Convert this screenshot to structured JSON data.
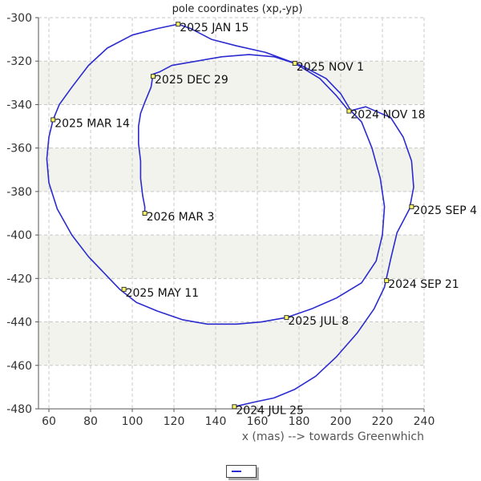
{
  "chart_data": {
    "type": "line",
    "title": "pole coordinates (xp,-yp)",
    "xlabel": "x (mas) --> towards Greenwhich",
    "ylabel": "",
    "xlim": [
      55,
      240
    ],
    "ylim": [
      -480,
      -300
    ],
    "x_ticks": [
      60,
      80,
      100,
      120,
      140,
      160,
      180,
      200,
      220,
      240
    ],
    "y_ticks": [
      -300,
      -320,
      -340,
      -360,
      -380,
      -400,
      -420,
      -440,
      -460,
      -480
    ],
    "grid": true,
    "series": [
      {
        "name": "",
        "color": "#2b2bd0",
        "points": [
          [
            149,
            -479
          ],
          [
            158,
            -477
          ],
          [
            168,
            -475
          ],
          [
            178,
            -471
          ],
          [
            188,
            -465
          ],
          [
            198,
            -456
          ],
          [
            208,
            -445
          ],
          [
            216,
            -434
          ],
          [
            221,
            -424
          ],
          [
            224,
            -411
          ],
          [
            227,
            -399
          ],
          [
            233,
            -388
          ],
          [
            235,
            -378
          ],
          [
            234,
            -366
          ],
          [
            230,
            -355
          ],
          [
            224,
            -346
          ],
          [
            212,
            -341
          ],
          [
            204,
            -343
          ],
          [
            198,
            -336
          ],
          [
            190,
            -328
          ],
          [
            178,
            -321
          ],
          [
            164,
            -316
          ],
          [
            150,
            -313
          ],
          [
            138,
            -310
          ],
          [
            128,
            -305
          ],
          [
            122,
            -303
          ],
          [
            112,
            -305
          ],
          [
            100,
            -308
          ],
          [
            88,
            -314
          ],
          [
            79,
            -322
          ],
          [
            71,
            -332
          ],
          [
            65,
            -340
          ],
          [
            62,
            -347
          ],
          [
            60,
            -355
          ],
          [
            59,
            -365
          ],
          [
            60,
            -376
          ],
          [
            64,
            -388
          ],
          [
            71,
            -400
          ],
          [
            79,
            -410
          ],
          [
            87,
            -418
          ],
          [
            94,
            -425
          ],
          [
            102,
            -431
          ],
          [
            112,
            -435
          ],
          [
            124,
            -439
          ],
          [
            136,
            -441
          ],
          [
            150,
            -441
          ],
          [
            162,
            -440
          ],
          [
            174,
            -438
          ],
          [
            186,
            -434
          ],
          [
            198,
            -429
          ],
          [
            210,
            -422
          ],
          [
            217,
            -412
          ],
          [
            220,
            -400
          ],
          [
            221,
            -387
          ],
          [
            219,
            -374
          ],
          [
            215,
            -360
          ],
          [
            210,
            -348
          ],
          [
            205,
            -343
          ],
          [
            200,
            -335
          ],
          [
            193,
            -328
          ],
          [
            181,
            -322
          ],
          [
            168,
            -318
          ],
          [
            156,
            -317
          ],
          [
            143,
            -318
          ],
          [
            131,
            -320
          ],
          [
            119,
            -322
          ],
          [
            113,
            -325
          ],
          [
            110,
            -326
          ],
          [
            109,
            -332
          ],
          [
            106,
            -339
          ],
          [
            104,
            -344
          ],
          [
            103,
            -350
          ],
          [
            103,
            -358
          ],
          [
            104,
            -366
          ],
          [
            104,
            -374
          ],
          [
            105,
            -382
          ],
          [
            106,
            -387
          ],
          [
            106,
            -390
          ]
        ]
      }
    ],
    "annotations": [
      {
        "label": "2024 JUL 25",
        "x": 149,
        "y": -479
      },
      {
        "label": "2024 SEP 21",
        "x": 222,
        "y": -421
      },
      {
        "label": "2025 SEP 4",
        "x": 234,
        "y": -387
      },
      {
        "label": "2024 NOV 18",
        "x": 204,
        "y": -343
      },
      {
        "label": "2025 NOV 1",
        "x": 178,
        "y": -321
      },
      {
        "label": "2025 JAN 15",
        "x": 122,
        "y": -303
      },
      {
        "label": "2025 DEC 29",
        "x": 110,
        "y": -327
      },
      {
        "label": "2025 MAR 14",
        "x": 62,
        "y": -347
      },
      {
        "label": "2026 MAR 3",
        "x": 106,
        "y": -390
      },
      {
        "label": "2025 MAY 11",
        "x": 96,
        "y": -425
      },
      {
        "label": "2025 JUL 8",
        "x": 174,
        "y": -438
      }
    ]
  }
}
